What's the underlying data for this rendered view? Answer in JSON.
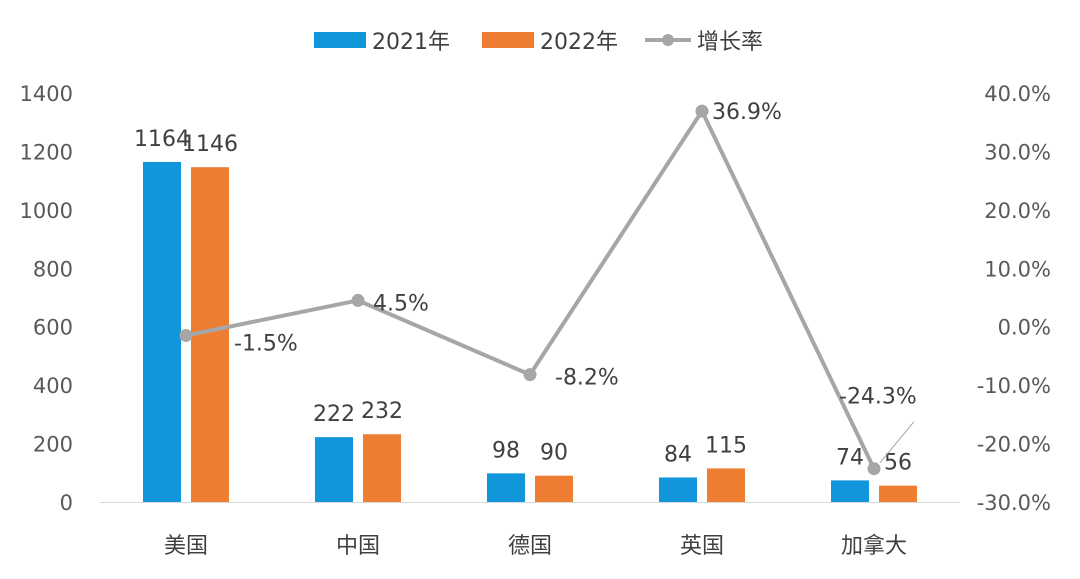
{
  "chart_data": {
    "type": "bar",
    "categories": [
      "美国",
      "中国",
      "德国",
      "英国",
      "加拿大"
    ],
    "series": [
      {
        "name": "2021年",
        "type": "bar",
        "axis": "left",
        "color": "#1296db",
        "values": [
          1164,
          222,
          98,
          84,
          74
        ]
      },
      {
        "name": "2022年",
        "type": "bar",
        "axis": "left",
        "color": "#ed7d31",
        "values": [
          1146,
          232,
          90,
          115,
          56
        ]
      },
      {
        "name": "增长率",
        "type": "line",
        "axis": "right",
        "color": "#a6a6a6",
        "values": [
          -1.5,
          4.5,
          -8.2,
          36.9,
          -24.3
        ]
      }
    ],
    "data_labels": {
      "2021年": [
        "1164",
        "222",
        "98",
        "84",
        "74"
      ],
      "2022年": [
        "1146",
        "232",
        "90",
        "115",
        "56"
      ],
      "增长率": [
        "-1.5%",
        "4.5%",
        "-8.2%",
        "36.9%",
        "-24.3%"
      ]
    },
    "y_left": {
      "ylim": [
        0,
        1400
      ],
      "ticks": [
        "0",
        "200",
        "400",
        "600",
        "800",
        "1000",
        "1200",
        "1400"
      ]
    },
    "y_right": {
      "ylim": [
        -30,
        40
      ],
      "ticks": [
        "-30.0%",
        "-20.0%",
        "-10.0%",
        "0.0%",
        "10.0%",
        "20.0%",
        "30.0%",
        "40.0%"
      ]
    },
    "legend_position": "top",
    "grid": false
  }
}
